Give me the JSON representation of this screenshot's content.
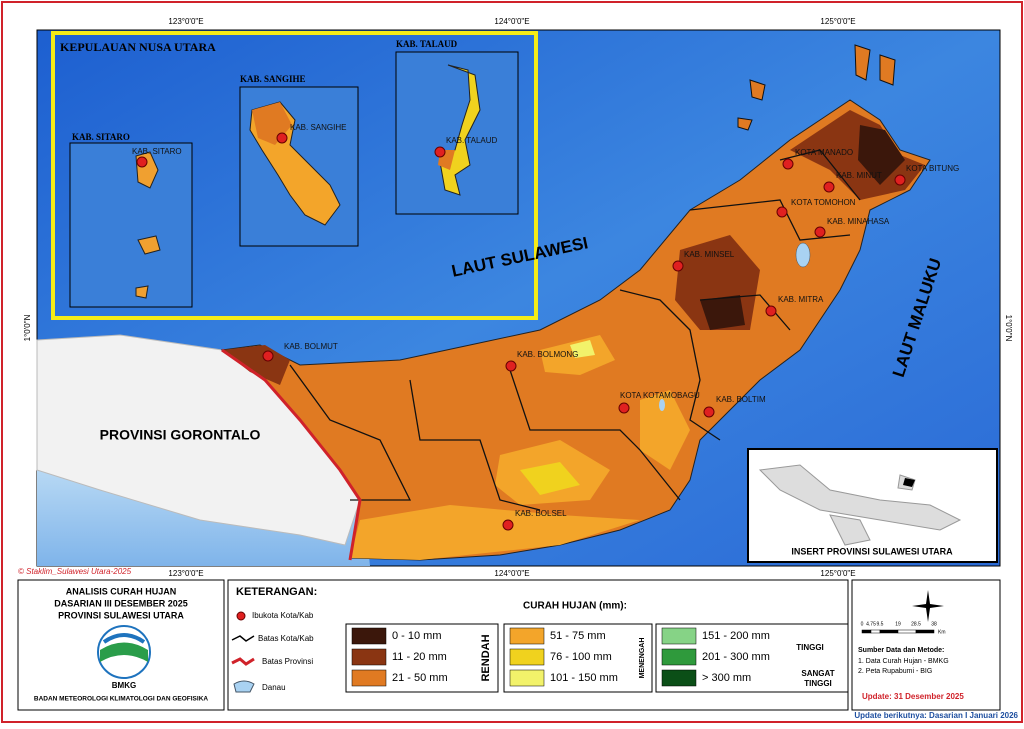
{
  "grid_labels": {
    "lon": [
      "123°0'0\"E",
      "124°0'0\"E",
      "125°0'0\"E"
    ],
    "lat": "1°0'0\"N"
  },
  "inset": {
    "title": "KEPULAUAN NUSA UTARA",
    "sitaro": "KAB. SITARO",
    "sangihe": "KAB. SANGIHE",
    "talaud": "KAB. TALAUD"
  },
  "cities": [
    "KAB. SITARO",
    "KAB. SANGIHE",
    "KAB. TALAUD",
    "KOTA MANADO",
    "KOTA BITUNG",
    "KAB. MINUT",
    "KOTA TOMOHON",
    "KAB. MINAHASA",
    "KAB. MINSEL",
    "KAB. MITRA",
    "KAB. BOLMUT",
    "KAB. BOLMONG",
    "KOTA KOTAMOBAGU",
    "KAB. BOLTIM",
    "KAB. BOLSEL"
  ],
  "seas": [
    "LAUT SULAWESI",
    "LAUT MALUKU"
  ],
  "province": "PROVINSI GORONTALO",
  "insert_title": "INSERT PROVINSI SULAWESI UTARA",
  "credit": "© Staklim_Sulawesi Utara-2025",
  "title": [
    "ANALISIS CURAH HUJAN",
    "DASARIAN III DESEMBER 2025",
    "PROVINSI SULAWESI UTARA"
  ],
  "logo": {
    "short": "BMKG",
    "full": "BADAN METEOROLOGI KLIMATOLOGI DAN GEOFISIKA"
  },
  "legend": {
    "heading": "KETERANGAN:",
    "symbols": [
      "Ibukota Kota/Kab",
      "Batas Kota/Kab",
      "Batas Provinsi",
      "Danau"
    ],
    "rain_heading": "CURAH HUJAN (mm):",
    "classes": [
      {
        "label": "0 - 10 mm",
        "color": "#3b170b"
      },
      {
        "label": "11 - 20 mm",
        "color": "#8a3512"
      },
      {
        "label": "21 - 50 mm",
        "color": "#e07a22"
      },
      {
        "label": "51 - 75 mm",
        "color": "#f3a52a"
      },
      {
        "label": "76 - 100 mm",
        "color": "#f0d21e"
      },
      {
        "label": "101 - 150 mm",
        "color": "#f2f26a"
      },
      {
        "label": "151 - 200 mm",
        "color": "#86d386"
      },
      {
        "label": "201 - 300 mm",
        "color": "#2f9a3c"
      },
      {
        "label": "> 300 mm",
        "color": "#0b4f17"
      }
    ],
    "groups": {
      "low": "RENDAH",
      "mid": "MENENGAH",
      "high": "TINGGI",
      "very_high": [
        "SANGAT",
        "TINGGI"
      ]
    }
  },
  "scale": {
    "ticks": [
      "0",
      "4.75",
      "9.5",
      "19",
      "28.5",
      "38"
    ],
    "unit": "Km"
  },
  "sources": [
    "Sumber Data dan Metode:",
    "1. Data Curah Hujan - BMKG",
    "2. Peta Rupabumi - BIG"
  ],
  "update": "Update: 31 Desember 2025",
  "next_update": "Update berikutnya: Dasarian I Januari 2026"
}
